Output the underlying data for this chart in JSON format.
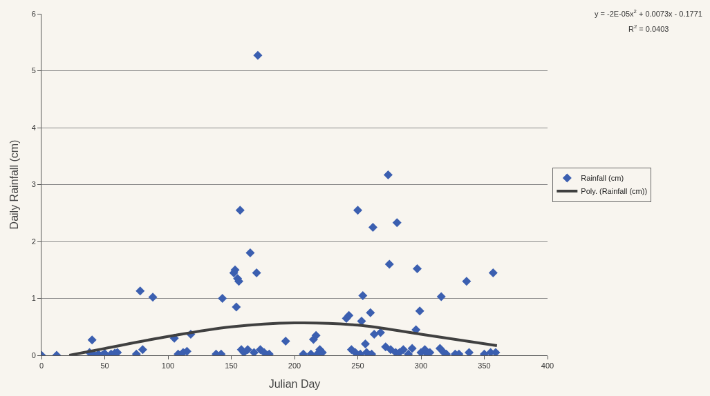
{
  "chart_data": {
    "type": "scatter",
    "xlabel": "Julian Day",
    "ylabel": "Daily Rainfall (cm)",
    "xlim": [
      0,
      400
    ],
    "xticks": [
      0,
      50,
      100,
      150,
      200,
      250,
      300,
      350,
      400
    ],
    "ylim": [
      0,
      6
    ],
    "yticks": [
      0,
      1,
      2,
      3,
      4,
      5,
      6
    ],
    "grid": "y",
    "legend": "right",
    "marker": "diamond",
    "annotations": [
      "y = -2E-05x$^{2}$ + 0.0073x - 0.1771",
      "R$^{2}$ = 0.0403"
    ],
    "series": [
      {
        "name": "Rainfall (cm)",
        "color": "#3b5fb0",
        "x": [
          0,
          12,
          38,
          40,
          42,
          45,
          48,
          50,
          55,
          58,
          60,
          75,
          78,
          80,
          88,
          105,
          108,
          112,
          115,
          118,
          138,
          142,
          143,
          152,
          153,
          154,
          155,
          156,
          157,
          158,
          160,
          163,
          165,
          168,
          170,
          171,
          173,
          176,
          180,
          193,
          207,
          213,
          215,
          217,
          218,
          220,
          222,
          241,
          243,
          245,
          248,
          250,
          252,
          253,
          254,
          256,
          257,
          260,
          261,
          262,
          263,
          268,
          272,
          274,
          275,
          276,
          280,
          281,
          283,
          286,
          290,
          293,
          296,
          297,
          299,
          300,
          303,
          305,
          307,
          315,
          316,
          318,
          320,
          327,
          330,
          336,
          338,
          350,
          355,
          357,
          359
        ],
        "values": [
          0,
          0,
          0.05,
          0.27,
          0,
          0.02,
          0,
          0.03,
          0.02,
          0.04,
          0.05,
          0.02,
          1.13,
          0.1,
          1.02,
          0.3,
          0.02,
          0.05,
          0.07,
          0.37,
          0.02,
          0.02,
          1.0,
          1.45,
          1.5,
          0.85,
          1.35,
          1.3,
          2.55,
          0.1,
          0.05,
          0.1,
          1.8,
          0.05,
          1.45,
          5.27,
          0.1,
          0.05,
          0.02,
          0.25,
          0.02,
          0.02,
          0.28,
          0.35,
          0.02,
          0.1,
          0.05,
          0.65,
          0.7,
          0.1,
          0.05,
          2.55,
          0.02,
          0.6,
          1.05,
          0.2,
          0.05,
          0.75,
          0.02,
          2.25,
          0.37,
          0.4,
          0.15,
          3.17,
          1.6,
          0.1,
          0.05,
          2.33,
          0.05,
          0.1,
          0.02,
          0.12,
          0.45,
          1.52,
          0.78,
          0.05,
          0.1,
          0.02,
          0.05,
          0.12,
          1.03,
          0.05,
          0.02,
          0.02,
          0.02,
          1.3,
          0.05,
          0.02,
          0.05,
          1.45,
          0.05
        ]
      },
      {
        "name": "Poly. (Rainfall (cm))",
        "type": "line",
        "color": "#404040",
        "marker": "none",
        "x": [
          22,
          50,
          100,
          150,
          200,
          250,
          300,
          360
        ],
        "values": [
          0,
          0.12,
          0.33,
          0.5,
          0.57,
          0.53,
          0.37,
          0.17
        ]
      }
    ]
  }
}
